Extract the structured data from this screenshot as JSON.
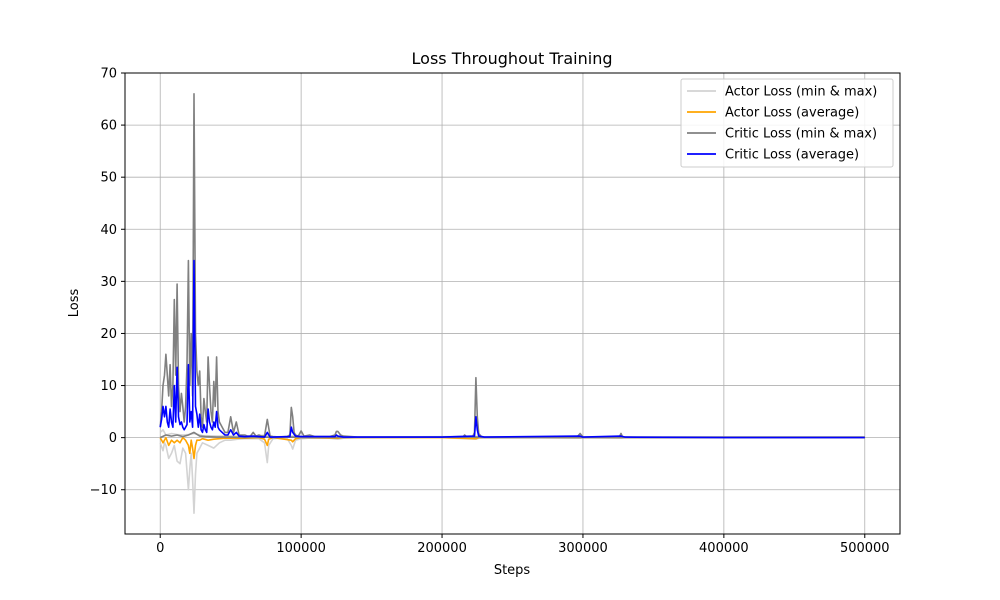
{
  "chart_data": {
    "type": "line",
    "title": "Loss Throughout Training",
    "xlabel": "Steps",
    "ylabel": "Loss",
    "xlim": [
      -25000,
      525000
    ],
    "ylim": [
      -18.5,
      70
    ],
    "xticks": [
      0,
      100000,
      200000,
      300000,
      400000,
      500000
    ],
    "xtick_labels": [
      "0",
      "100000",
      "200000",
      "300000",
      "400000",
      "500000"
    ],
    "yticks": [
      -10,
      0,
      10,
      20,
      30,
      40,
      50,
      60,
      70
    ],
    "ytick_labels": [
      "−10",
      "0",
      "10",
      "20",
      "30",
      "40",
      "50",
      "60",
      "70"
    ],
    "grid": true,
    "legend_position": "top-right",
    "series": [
      {
        "name": "Actor Loss (min & max)",
        "color": "#d3d3d3",
        "x": [
          0,
          2000,
          3000,
          4000,
          6000,
          8000,
          10000,
          12000,
          14000,
          16000,
          18000,
          20000,
          21000,
          22000,
          23000,
          24000,
          25000,
          26000,
          28000,
          30000,
          34000,
          38000,
          42000,
          46000,
          50000,
          55000,
          60000,
          65000,
          70000,
          74000,
          76000,
          77000,
          80000,
          85000,
          90000,
          93000,
          94000,
          96000,
          100000,
          105000,
          120000,
          126000,
          130000,
          140000,
          200000,
          224000,
          226000,
          230000,
          260000,
          298000,
          300000,
          327000,
          330000,
          400000,
          500000
        ],
        "y": [
          -1,
          -2.5,
          -1,
          -1.5,
          -4,
          -3,
          -1.5,
          -4.5,
          -5,
          -2,
          -3,
          -10,
          -6,
          -3,
          -8,
          -14.5,
          -7,
          -3,
          -2,
          -1,
          -1.5,
          -2,
          -1,
          -0.5,
          -0.5,
          -0.3,
          -0.2,
          -0.2,
          -0.2,
          -1,
          -4.8,
          -1.5,
          -0.2,
          -0.1,
          -0.1,
          -1.5,
          -2.2,
          -0.5,
          -0.2,
          -0.1,
          -0.1,
          -0.3,
          -0.1,
          0,
          0,
          -0.3,
          -0.1,
          0,
          0,
          -0.1,
          0,
          -0.1,
          0,
          0,
          0
        ]
      },
      {
        "name": "Actor Loss (min & max)",
        "color": "#d3d3d3",
        "x": [
          0,
          2000,
          4000,
          8000,
          12000,
          16000,
          20000,
          24000,
          30000,
          40000,
          50000,
          60000,
          76000,
          80000,
          94000,
          100000,
          224000,
          230000,
          500000
        ],
        "y": [
          1,
          1.5,
          0.5,
          0.8,
          0.6,
          0.5,
          0.6,
          0.8,
          0.4,
          0.3,
          0.3,
          0.2,
          0.5,
          0.1,
          0.3,
          0.1,
          0.2,
          0.1,
          0
        ]
      },
      {
        "name": "Actor Loss (average)",
        "color": "#ffa500",
        "x": [
          0,
          2000,
          4000,
          6000,
          8000,
          10000,
          12000,
          14000,
          16000,
          18000,
          20000,
          21000,
          22000,
          23000,
          24000,
          25000,
          26000,
          28000,
          30000,
          34000,
          38000,
          42000,
          46000,
          50000,
          60000,
          70000,
          74000,
          76000,
          77000,
          80000,
          93000,
          94000,
          96000,
          100000,
          126000,
          130000,
          200000,
          224000,
          226000,
          500000
        ],
        "y": [
          0,
          -1,
          0,
          -1.5,
          -0.5,
          -1,
          -0.5,
          -1,
          0,
          -0.5,
          -1.5,
          -3,
          -0.5,
          -2,
          -4,
          -1.5,
          -0.5,
          -0.5,
          -0.2,
          -0.5,
          -0.3,
          -0.2,
          -0.1,
          -0.1,
          -0.1,
          0,
          -0.3,
          -1.5,
          -0.3,
          0,
          -0.5,
          -0.8,
          -0.2,
          0,
          -0.1,
          0,
          0,
          -0.2,
          0,
          0
        ]
      },
      {
        "name": "Critic Loss (min & max)",
        "color": "#808080",
        "x": [
          0,
          1000,
          2000,
          3000,
          4000,
          5000,
          6000,
          7000,
          8000,
          9000,
          10000,
          11000,
          12000,
          13000,
          14000,
          15000,
          16000,
          17000,
          18000,
          19000,
          20000,
          21000,
          22000,
          23000,
          24000,
          25000,
          26000,
          27000,
          28000,
          29000,
          30000,
          31000,
          32000,
          33000,
          34000,
          35000,
          36000,
          37000,
          38000,
          39000,
          40000,
          41000,
          42000,
          44000,
          46000,
          48000,
          50000,
          52000,
          54000,
          56000,
          58000,
          60000,
          62000,
          64000,
          66000,
          68000,
          70000,
          72000,
          74000,
          76000,
          78000,
          80000,
          85000,
          90000,
          92000,
          93000,
          94000,
          95000,
          96000,
          98000,
          100000,
          102000,
          106000,
          110000,
          120000,
          124000,
          125000,
          126000,
          128000,
          130000,
          140000,
          200000,
          215000,
          216000,
          218000,
          222000,
          223000,
          224000,
          225000,
          226000,
          228000,
          230000,
          240000,
          290000,
          296000,
          298000,
          300000,
          320000,
          326000,
          327000,
          328000,
          330000,
          400000,
          500000
        ],
        "y": [
          2,
          5,
          10,
          12,
          16,
          12,
          8,
          14,
          6,
          10,
          26.5,
          12,
          29.5,
          10,
          5,
          8.5,
          6,
          3,
          6,
          14,
          34,
          10,
          20,
          8,
          66,
          20,
          12.7,
          10,
          12.8,
          4,
          2,
          7.5,
          5,
          3,
          15.5,
          10,
          5,
          3,
          10.8,
          6,
          15.5,
          5,
          3,
          2,
          1,
          1,
          4,
          1,
          3,
          0.5,
          0.5,
          0.5,
          0.3,
          0.3,
          1,
          0.3,
          0.5,
          0.3,
          0.3,
          3.5,
          0.3,
          0.2,
          0.1,
          0.2,
          0.5,
          5.8,
          4,
          1,
          0.5,
          0.3,
          1.3,
          0.3,
          0.5,
          0.2,
          0.2,
          0.5,
          1.2,
          1.2,
          0.5,
          0.3,
          0.1,
          0.1,
          0.2,
          0.5,
          0.1,
          0.3,
          1,
          11.5,
          4,
          0.8,
          0.2,
          0.1,
          0.1,
          0.1,
          0.2,
          0.8,
          0.1,
          0.1,
          0.2,
          0.8,
          0.2,
          0.1,
          0.1,
          0.1
        ]
      },
      {
        "name": "Critic Loss (min & max)",
        "color": "#808080",
        "x": [
          0,
          4000,
          8000,
          12000,
          16000,
          20000,
          24000,
          28000,
          32000,
          40000,
          50000,
          60000,
          76000,
          80000,
          94000,
          100000,
          224000,
          230000,
          500000
        ],
        "y": [
          0,
          0.5,
          0.3,
          0.5,
          0.2,
          0.5,
          1,
          0.3,
          0.2,
          0.1,
          0.1,
          0,
          0.1,
          0,
          0.1,
          0,
          0.1,
          0,
          0
        ]
      },
      {
        "name": "Critic Loss (average)",
        "color": "#0000ff",
        "x": [
          0,
          1000,
          2000,
          3000,
          4000,
          5000,
          6000,
          7000,
          8000,
          9000,
          10000,
          11000,
          12000,
          13000,
          14000,
          15000,
          16000,
          17000,
          18000,
          19000,
          20000,
          21000,
          22000,
          23000,
          24000,
          25000,
          26000,
          27000,
          28000,
          29000,
          30000,
          31000,
          32000,
          33000,
          34000,
          35000,
          36000,
          37000,
          38000,
          39000,
          40000,
          41000,
          42000,
          44000,
          46000,
          48000,
          50000,
          52000,
          54000,
          56000,
          60000,
          66000,
          70000,
          74000,
          76000,
          78000,
          80000,
          92000,
          93000,
          94000,
          96000,
          100000,
          124000,
          125000,
          126000,
          130000,
          200000,
          223000,
          224000,
          225000,
          226000,
          230000,
          298000,
          300000,
          327000,
          330000,
          400000,
          500000
        ],
        "y": [
          2,
          3.5,
          6,
          4,
          6,
          3,
          2,
          5.5,
          3,
          2,
          10,
          3,
          13.5,
          4,
          2.5,
          3,
          2,
          1.5,
          2,
          2.5,
          14,
          3,
          5,
          2,
          34,
          6,
          4.5,
          2,
          4.5,
          1.5,
          1,
          2.5,
          1.5,
          1,
          5.5,
          3,
          2,
          1.5,
          3,
          2,
          5,
          2,
          1.5,
          1,
          0.5,
          0.5,
          1.5,
          0.5,
          1,
          0.3,
          0.2,
          0.3,
          0.2,
          0.1,
          1,
          0.1,
          0.1,
          0.2,
          2,
          1,
          0.3,
          0.2,
          0.2,
          0.5,
          0.3,
          0.1,
          0.1,
          0.3,
          4,
          1.5,
          0.3,
          0.1,
          0.3,
          0.1,
          0.3,
          0.1,
          0,
          0
        ]
      }
    ],
    "legend": [
      {
        "label": "Actor Loss (min & max)",
        "color": "#d3d3d3"
      },
      {
        "label": "Actor Loss (average)",
        "color": "#ffa500"
      },
      {
        "label": "Critic Loss (min & max)",
        "color": "#808080"
      },
      {
        "label": "Critic Loss (average)",
        "color": "#0000ff"
      }
    ]
  }
}
